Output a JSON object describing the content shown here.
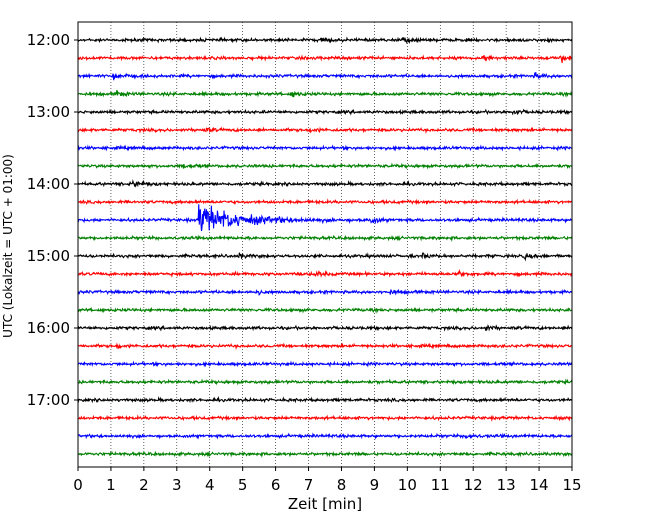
{
  "chart_data": {
    "type": "line",
    "title": "",
    "xlabel": "Zeit  [min]",
    "ylabel": "UTC (Lokalzeit = UTC + 01:00)",
    "xlim": [
      0,
      15
    ],
    "x_ticks": [
      0,
      1,
      2,
      3,
      4,
      5,
      6,
      7,
      8,
      9,
      10,
      11,
      12,
      13,
      14,
      15
    ],
    "x_tick_labels": [
      "0",
      "1",
      "2",
      "3",
      "4",
      "5",
      "6",
      "7",
      "8",
      "9",
      "10",
      "11",
      "12",
      "13",
      "14",
      "15"
    ],
    "y_tick_labels": [
      "12:00",
      "13:00",
      "14:00",
      "15:00",
      "16:00",
      "17:00"
    ],
    "y_tick_rows": [
      0,
      4,
      8,
      12,
      16,
      20
    ],
    "grid": "vertical dotted",
    "row_colors": [
      "#000000",
      "#ff0000",
      "#0000ff",
      "#008000"
    ],
    "rows": [
      {
        "start": "12:00",
        "events": [
          {
            "t": 7.4,
            "amp": 1.6
          },
          {
            "t": 9.9,
            "amp": 1.4
          }
        ]
      },
      {
        "start": "12:15",
        "events": [
          {
            "t": 12.3,
            "amp": 1.8
          },
          {
            "t": 14.7,
            "amp": 2.0
          }
        ]
      },
      {
        "start": "12:30",
        "events": [
          {
            "t": 1.1,
            "amp": 3.0
          },
          {
            "t": 13.9,
            "amp": 1.6
          }
        ]
      },
      {
        "start": "12:45",
        "events": [
          {
            "t": 1.2,
            "amp": 1.6
          },
          {
            "t": 6.5,
            "amp": 1.5
          }
        ]
      },
      {
        "start": "13:00",
        "events": [
          {
            "t": 13.2,
            "amp": 1.4
          }
        ]
      },
      {
        "start": "13:15",
        "events": [
          {
            "t": 3.8,
            "amp": 1.4
          },
          {
            "t": 7.1,
            "amp": 1.3
          }
        ]
      },
      {
        "start": "13:30",
        "events": []
      },
      {
        "start": "13:45",
        "events": [
          {
            "t": 3.2,
            "amp": 1.3
          }
        ]
      },
      {
        "start": "14:00",
        "events": [
          {
            "t": 1.6,
            "amp": 1.6
          },
          {
            "t": 1.8,
            "amp": 1.4
          }
        ]
      },
      {
        "start": "14:15",
        "events": []
      },
      {
        "start": "14:30",
        "events": [
          {
            "t": 3.7,
            "amp": 10.0
          },
          {
            "t": 8.9,
            "amp": 2.0
          }
        ]
      },
      {
        "start": "14:45",
        "events": []
      },
      {
        "start": "15:00",
        "events": [
          {
            "t": 10.5,
            "amp": 1.6
          },
          {
            "t": 4.9,
            "amp": 1.3
          },
          {
            "t": 13.6,
            "amp": 1.4
          }
        ]
      },
      {
        "start": "15:15",
        "events": [
          {
            "t": 7.2,
            "amp": 1.6
          },
          {
            "t": 11.6,
            "amp": 1.4
          }
        ]
      },
      {
        "start": "15:30",
        "events": [
          {
            "t": 5.4,
            "amp": 1.4
          },
          {
            "t": 9.5,
            "amp": 1.3
          }
        ]
      },
      {
        "start": "15:45",
        "events": []
      },
      {
        "start": "16:00",
        "events": [
          {
            "t": 12.4,
            "amp": 1.4
          }
        ]
      },
      {
        "start": "16:15",
        "events": [
          {
            "t": 1.2,
            "amp": 1.2
          }
        ]
      },
      {
        "start": "16:30",
        "events": []
      },
      {
        "start": "16:45",
        "events": []
      },
      {
        "start": "17:00",
        "events": []
      },
      {
        "start": "17:15",
        "events": []
      },
      {
        "start": "17:30",
        "events": [
          {
            "t": 11.8,
            "amp": 1.4
          }
        ]
      },
      {
        "start": "17:45",
        "events": []
      }
    ]
  }
}
